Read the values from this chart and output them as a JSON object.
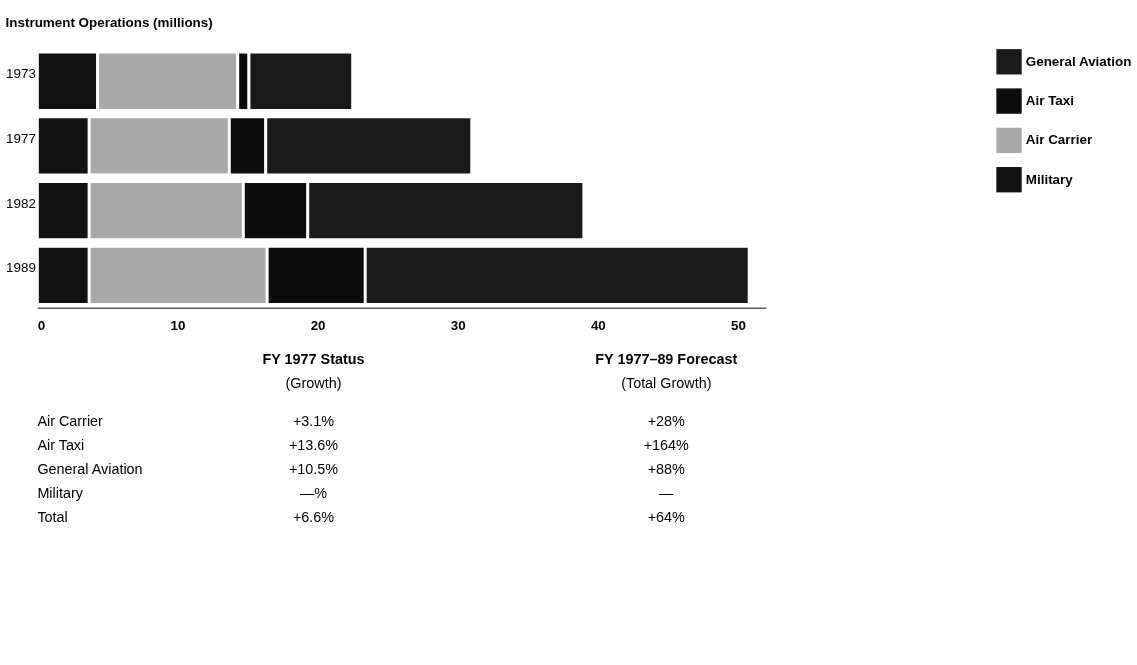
{
  "chart_data": {
    "type": "bar",
    "title": "Instrument Operations (millions)",
    "orientation": "horizontal",
    "stacked": true,
    "legend": "top right",
    "categories": [
      "1973",
      "1977",
      "1982",
      "1989"
    ],
    "series": [
      {
        "name": "Military",
        "color": "#111111",
        "values": [
          4.3,
          3.7,
          3.7,
          3.7
        ]
      },
      {
        "name": "Air Carrier",
        "color": "#a9a9a9",
        "values": [
          10,
          10,
          11,
          12.7
        ]
      },
      {
        "name": "Air Taxi",
        "color": "#0c0c0c",
        "values": [
          0.8,
          2.6,
          4.6,
          7
        ]
      },
      {
        "name": "General Aviation",
        "color": "#1a1a1a",
        "values": [
          7.4,
          14.7,
          19.7,
          27.4
        ]
      }
    ],
    "xlim": [
      0,
      52
    ],
    "xticks": [
      0,
      10,
      20,
      30,
      40,
      50
    ],
    "annotations": [
      "FY 1977 Status",
      "(Growth)",
      "FY 1977–89 Forecast",
      "(Total Growth)",
      "Air Carrier",
      "+3.1%",
      "+28%",
      "Air Taxi",
      "+13.6%",
      "+164%",
      "General Aviation",
      "+10.5%",
      "+88%",
      "Military",
      "—%",
      "—",
      "Total",
      "+6.6%",
      "+64%"
    ]
  }
}
